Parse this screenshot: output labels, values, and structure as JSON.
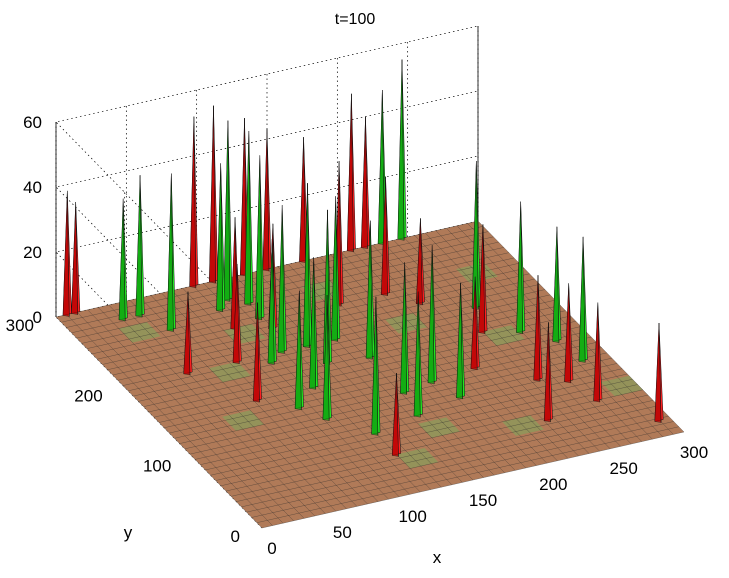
{
  "chart_data": {
    "type": "surface3d",
    "title": "t=100",
    "xlabel": "x",
    "ylabel": "y",
    "zlabel": "",
    "xlim": [
      0,
      300
    ],
    "ylim": [
      0,
      300
    ],
    "zlim": [
      0,
      60
    ],
    "x_ticks": [
      "0",
      "50",
      "100",
      "150",
      "200",
      "250",
      "300"
    ],
    "y_ticks": [
      "0",
      "100",
      "200",
      "300"
    ],
    "z_ticks": [
      "0",
      "20",
      "40",
      "60"
    ],
    "grid": true,
    "colors": {
      "red": "#ff2020",
      "green": "#22e622",
      "floor": "#b07a58",
      "mesh": "#2a2a2a"
    },
    "series": [
      {
        "name": "",
        "color": "red",
        "peaks": [
          {
            "x": 8,
            "y": 300,
            "z": 38
          },
          {
            "x": 14,
            "y": 300,
            "z": 34
          },
          {
            "x": 98,
            "y": 300,
            "z": 52
          },
          {
            "x": 112,
            "y": 300,
            "z": 54
          },
          {
            "x": 134,
            "y": 300,
            "z": 48
          },
          {
            "x": 150,
            "y": 300,
            "z": 43
          },
          {
            "x": 176,
            "y": 300,
            "z": 38
          },
          {
            "x": 210,
            "y": 300,
            "z": 48
          },
          {
            "x": 220,
            "y": 300,
            "z": 40
          },
          {
            "x": 45,
            "y": 200,
            "z": 25
          },
          {
            "x": 80,
            "y": 200,
            "z": 30
          },
          {
            "x": 98,
            "y": 240,
            "z": 34
          },
          {
            "x": 120,
            "y": 230,
            "z": 32
          },
          {
            "x": 172,
            "y": 240,
            "z": 44
          },
          {
            "x": 205,
            "y": 240,
            "z": 36
          },
          {
            "x": 70,
            "y": 150,
            "z": 30
          },
          {
            "x": 120,
            "y": 50,
            "z": 25
          },
          {
            "x": 215,
            "y": 130,
            "z": 28
          },
          {
            "x": 220,
            "y": 220,
            "z": 26
          },
          {
            "x": 240,
            "y": 170,
            "z": 33
          },
          {
            "x": 245,
            "y": 100,
            "z": 32
          },
          {
            "x": 262,
            "y": 90,
            "z": 30
          },
          {
            "x": 268,
            "y": 60,
            "z": 30
          },
          {
            "x": 292,
            "y": 20,
            "z": 30
          },
          {
            "x": 228,
            "y": 50,
            "z": 30
          }
        ]
      },
      {
        "name": "",
        "color": "green",
        "peaks": [
          {
            "x": 38,
            "y": 280,
            "z": 37
          },
          {
            "x": 50,
            "y": 280,
            "z": 43
          },
          {
            "x": 60,
            "y": 255,
            "z": 48
          },
          {
            "x": 100,
            "y": 265,
            "z": 45
          },
          {
            "x": 110,
            "y": 275,
            "z": 55
          },
          {
            "x": 120,
            "y": 265,
            "z": 53
          },
          {
            "x": 118,
            "y": 245,
            "z": 50
          },
          {
            "x": 232,
            "y": 300,
            "z": 47
          },
          {
            "x": 246,
            "y": 300,
            "z": 55
          },
          {
            "x": 100,
            "y": 190,
            "z": 38
          },
          {
            "x": 112,
            "y": 200,
            "z": 45
          },
          {
            "x": 130,
            "y": 200,
            "z": 50
          },
          {
            "x": 132,
            "y": 175,
            "z": 47
          },
          {
            "x": 150,
            "y": 200,
            "z": 44
          },
          {
            "x": 160,
            "y": 170,
            "z": 42
          },
          {
            "x": 110,
            "y": 150,
            "z": 40
          },
          {
            "x": 90,
            "y": 130,
            "z": 36
          },
          {
            "x": 100,
            "y": 110,
            "z": 38
          },
          {
            "x": 120,
            "y": 80,
            "z": 42
          },
          {
            "x": 160,
            "y": 120,
            "z": 40
          },
          {
            "x": 182,
            "y": 125,
            "z": 42
          },
          {
            "x": 155,
            "y": 90,
            "z": 38
          },
          {
            "x": 190,
            "y": 100,
            "z": 35
          },
          {
            "x": 250,
            "y": 200,
            "z": 45
          },
          {
            "x": 262,
            "y": 160,
            "z": 40
          },
          {
            "x": 278,
            "y": 140,
            "z": 35
          },
          {
            "x": 282,
            "y": 110,
            "z": 38
          }
        ]
      }
    ]
  }
}
